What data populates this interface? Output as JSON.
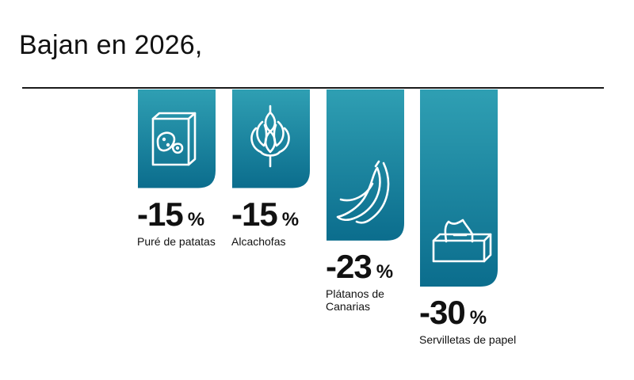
{
  "header": {
    "title": "Bajan en 2026,"
  },
  "colors": {
    "bar_top": "#2f9fb3",
    "bar_bottom": "#0b6d8d",
    "icon": "#ffffff"
  },
  "chart_data": {
    "type": "bar",
    "orientation": "downward",
    "categories": [
      "Puré de patatas",
      "Alcachofas",
      "Plátanos de\nCanarias",
      "Servilletas de papel"
    ],
    "values": [
      -15,
      -15,
      -23,
      -30
    ],
    "value_unit": "%",
    "icons": [
      "potato-box-icon",
      "artichoke-icon",
      "banana-icon",
      "tissue-box-icon"
    ],
    "value_labels": [
      "-15",
      "-15",
      "-23",
      "-30"
    ],
    "unit_label": "%",
    "title": "Bajan en 2026,"
  }
}
